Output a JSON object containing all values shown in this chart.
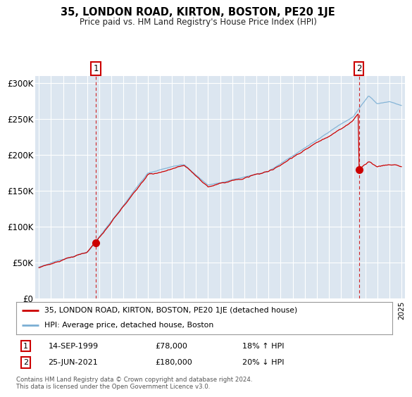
{
  "title": "35, LONDON ROAD, KIRTON, BOSTON, PE20 1JE",
  "subtitle": "Price paid vs. HM Land Registry's House Price Index (HPI)",
  "footer": "Contains HM Land Registry data © Crown copyright and database right 2024.\nThis data is licensed under the Open Government Licence v3.0.",
  "legend_line1": "35, LONDON ROAD, KIRTON, BOSTON, PE20 1JE (detached house)",
  "legend_line2": "HPI: Average price, detached house, Boston",
  "marker1_label": "1",
  "marker1_date": "14-SEP-1999",
  "marker1_price": "£78,000",
  "marker1_hpi": "18% ↑ HPI",
  "marker1_year": 1999.71,
  "marker1_value": 78000,
  "marker2_label": "2",
  "marker2_date": "25-JUN-2021",
  "marker2_price": "£180,000",
  "marker2_hpi": "20% ↓ HPI",
  "marker2_year": 2021.48,
  "marker2_value": 180000,
  "red_color": "#cc0000",
  "blue_color": "#7bafd4",
  "background_color": "#dce6f0",
  "plot_bg_color": "#dce6f0",
  "grid_color": "#ffffff",
  "ylim": [
    0,
    310000
  ],
  "yticks": [
    0,
    50000,
    100000,
    150000,
    200000,
    250000,
    300000
  ],
  "ytick_labels": [
    "£0",
    "£50K",
    "£100K",
    "£150K",
    "£200K",
    "£250K",
    "£300K"
  ],
  "xstart": 1995,
  "xend": 2025
}
